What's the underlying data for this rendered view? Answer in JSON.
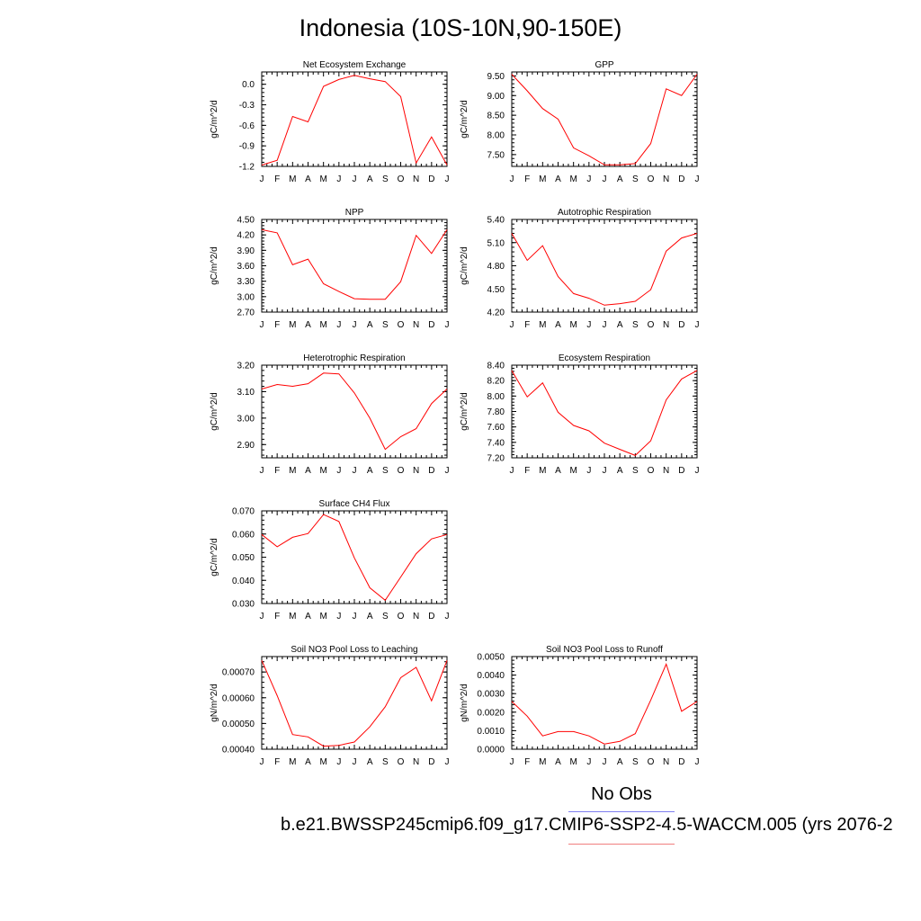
{
  "title": "Indonesia (10S-10N,90-150E)",
  "legend": {
    "obs_label": "No Obs",
    "obs_color": "#7f7ff0",
    "case_label": "b.e21.BWSSP245cmip6.f09_g17.CMIP6-SSP2-4.5-WACCM.005 (yrs 2076-2",
    "case_color": "#f07f7f"
  },
  "series_color": "#ff0000",
  "month_labels": [
    "J",
    "F",
    "M",
    "A",
    "M",
    "J",
    "J",
    "A",
    "S",
    "O",
    "N",
    "D",
    "J"
  ],
  "chart_data": [
    {
      "type": "line",
      "title": "Net Ecosystem Exchange",
      "ylabel": "gC/m^2/d",
      "ylim": [
        -1.2,
        0.18
      ],
      "yticks": [
        -1.2,
        -0.9,
        -0.6,
        -0.3,
        0.0
      ],
      "ytick_labels": [
        "-1.2",
        "-0.9",
        "-0.6",
        "-0.3",
        "0.0"
      ],
      "values": [
        -1.18,
        -1.11,
        -0.47,
        -0.55,
        -0.03,
        0.07,
        0.13,
        0.08,
        0.04,
        -0.18,
        -1.15,
        -0.77,
        -1.18
      ]
    },
    {
      "type": "line",
      "title": "GPP",
      "ylabel": "gC/m^2/d",
      "ylim": [
        7.2,
        9.6
      ],
      "yticks": [
        7.5,
        8.0,
        8.5,
        9.0,
        9.5
      ],
      "ytick_labels": [
        "7.50",
        "8.00",
        "8.50",
        "9.00",
        "9.50"
      ],
      "values": [
        9.54,
        9.12,
        8.67,
        8.4,
        7.67,
        7.47,
        7.24,
        7.24,
        7.27,
        7.78,
        9.17,
        9.0,
        9.54
      ]
    },
    {
      "type": "line",
      "title": "NPP",
      "ylabel": "gC/m^2/d",
      "ylim": [
        2.7,
        4.5
      ],
      "yticks": [
        2.7,
        3.0,
        3.3,
        3.6,
        3.9,
        4.2,
        4.5
      ],
      "ytick_labels": [
        "2.70",
        "3.00",
        "3.30",
        "3.60",
        "3.90",
        "4.20",
        "4.50"
      ],
      "values": [
        4.3,
        4.24,
        3.62,
        3.73,
        3.25,
        3.1,
        2.96,
        2.95,
        2.95,
        3.29,
        4.19,
        3.84,
        4.3
      ]
    },
    {
      "type": "line",
      "title": "Autotrophic Respiration",
      "ylabel": "gC/m^2/d",
      "ylim": [
        4.2,
        5.4
      ],
      "yticks": [
        4.2,
        4.5,
        4.8,
        5.1,
        5.4
      ],
      "ytick_labels": [
        "4.20",
        "4.50",
        "4.80",
        "5.10",
        "5.40"
      ],
      "values": [
        5.22,
        4.87,
        5.06,
        4.66,
        4.44,
        4.38,
        4.29,
        4.31,
        4.34,
        4.49,
        4.99,
        5.16,
        5.22
      ]
    },
    {
      "type": "line",
      "title": "Heterotrophic Respiration",
      "ylabel": "gC/m^2/d",
      "ylim": [
        2.85,
        3.2
      ],
      "yticks": [
        2.9,
        3.0,
        3.1,
        3.2
      ],
      "ytick_labels": [
        "2.90",
        "3.00",
        "3.10",
        "3.20"
      ],
      "values": [
        3.11,
        3.127,
        3.12,
        3.13,
        3.17,
        3.167,
        3.095,
        3.0,
        2.882,
        2.93,
        2.96,
        3.055,
        3.11
      ]
    },
    {
      "type": "line",
      "title": "Ecosystem Respiration",
      "ylabel": "gC/m^2/d",
      "ylim": [
        7.2,
        8.4
      ],
      "yticks": [
        7.2,
        7.4,
        7.6,
        7.8,
        8.0,
        8.2,
        8.4
      ],
      "ytick_labels": [
        "7.20",
        "7.40",
        "7.60",
        "7.80",
        "8.00",
        "8.20",
        "8.40"
      ],
      "values": [
        8.33,
        7.99,
        8.17,
        7.79,
        7.62,
        7.55,
        7.39,
        7.31,
        7.23,
        7.42,
        7.95,
        8.22,
        8.33
      ]
    },
    {
      "type": "line",
      "title": "Surface CH4 Flux",
      "ylabel": "gC/m^2/d",
      "ylim": [
        0.03,
        0.07
      ],
      "yticks": [
        0.03,
        0.04,
        0.05,
        0.06,
        0.07
      ],
      "ytick_labels": [
        "0.030",
        "0.040",
        "0.050",
        "0.060",
        "0.070"
      ],
      "values": [
        0.0598,
        0.0545,
        0.0586,
        0.0602,
        0.0684,
        0.0654,
        0.0497,
        0.0368,
        0.0314,
        0.0414,
        0.0515,
        0.0579,
        0.0598
      ]
    },
    {
      "type": "line",
      "title": "Soil NO3 Pool Loss to Leaching",
      "ylabel": "gN/m^2/d",
      "ylim": [
        0.0004,
        0.00076
      ],
      "yticks": [
        0.0004,
        0.0005,
        0.0006,
        0.0007
      ],
      "ytick_labels": [
        "0.00040",
        "0.00050",
        "0.00060",
        "0.00070"
      ],
      "values": [
        0.000745,
        0.000608,
        0.000457,
        0.000448,
        0.000412,
        0.000415,
        0.000428,
        0.000487,
        0.000565,
        0.000678,
        0.000718,
        0.000588,
        0.000745
      ]
    },
    {
      "type": "line",
      "title": "Soil NO3 Pool Loss to Runoff",
      "ylabel": "gN/m^2/d",
      "ylim": [
        0.0,
        0.005
      ],
      "yticks": [
        0.0,
        0.001,
        0.002,
        0.003,
        0.004,
        0.005
      ],
      "ytick_labels": [
        "0.0000",
        "0.0010",
        "0.0020",
        "0.0030",
        "0.0040",
        "0.0050"
      ],
      "values": [
        0.00258,
        0.00178,
        0.00072,
        0.00095,
        0.00095,
        0.00072,
        0.00028,
        0.00042,
        0.00084,
        0.00265,
        0.00459,
        0.00205,
        0.00258
      ]
    }
  ]
}
